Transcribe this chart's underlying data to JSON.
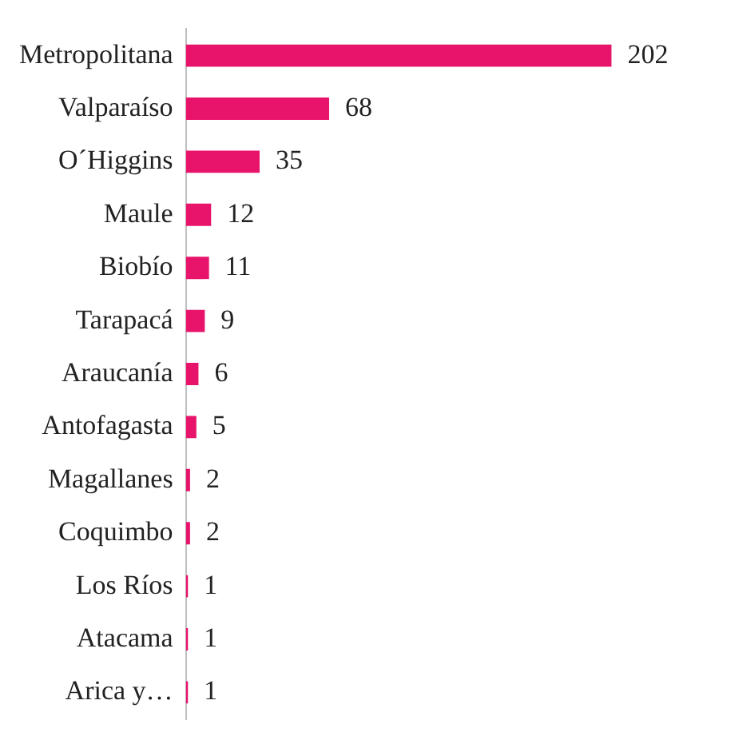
{
  "chart_data": {
    "type": "bar",
    "orientation": "horizontal",
    "categories": [
      "Metropolitana",
      "Valparaíso",
      "O´Higgins",
      "Maule",
      "Biobío",
      "Tarapacá",
      "Araucanía",
      "Antofagasta",
      "Magallanes",
      "Coquimbo",
      "Los Ríos",
      "Atacama",
      "Arica y…"
    ],
    "values": [
      202,
      68,
      35,
      12,
      11,
      9,
      6,
      5,
      2,
      2,
      1,
      1,
      1
    ],
    "color": "#e8136b",
    "data_labels": true
  }
}
